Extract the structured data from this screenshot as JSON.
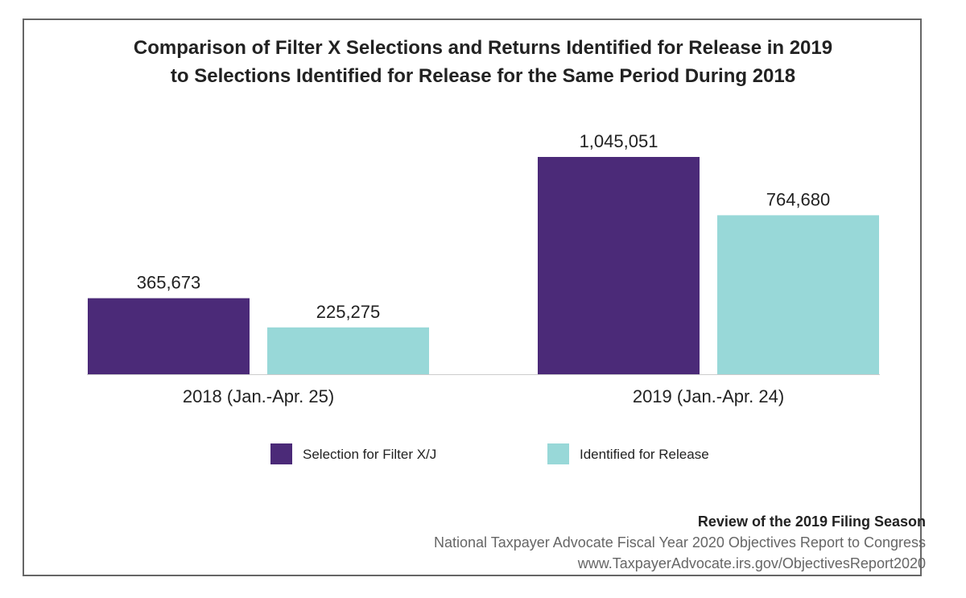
{
  "chart_data": {
    "type": "bar",
    "title": "Comparison of Filter X Selections and Returns Identified for Release in 2019",
    "subtitle": "to Selections Identified for Release for the Same Period During 2018",
    "categories": [
      "2018 (Jan.-Apr. 25)",
      "2019 (Jan.-Apr. 24)"
    ],
    "series": [
      {
        "name": "Selection for Filter X/J",
        "values": [
          365673,
          1045051
        ],
        "labels": [
          "365,673",
          "1,045,051"
        ],
        "color": "#4b2a78"
      },
      {
        "name": "Identified for Release",
        "values": [
          225275,
          764680
        ],
        "labels": [
          "225,275",
          "764,680"
        ],
        "color": "#98d8d8"
      }
    ],
    "xlabel": "",
    "ylabel": "",
    "ylim": [
      0,
      1045051
    ],
    "grid": false,
    "legend_position": "bottom"
  },
  "footer": {
    "report_title": "Review of the 2019 Filing Season",
    "report_subtitle": "National Taxpayer Advocate Fiscal Year 2020 Objectives Report to Congress",
    "url": "www.TaxpayerAdvocate.irs.gov/ObjectivesReport2020"
  }
}
